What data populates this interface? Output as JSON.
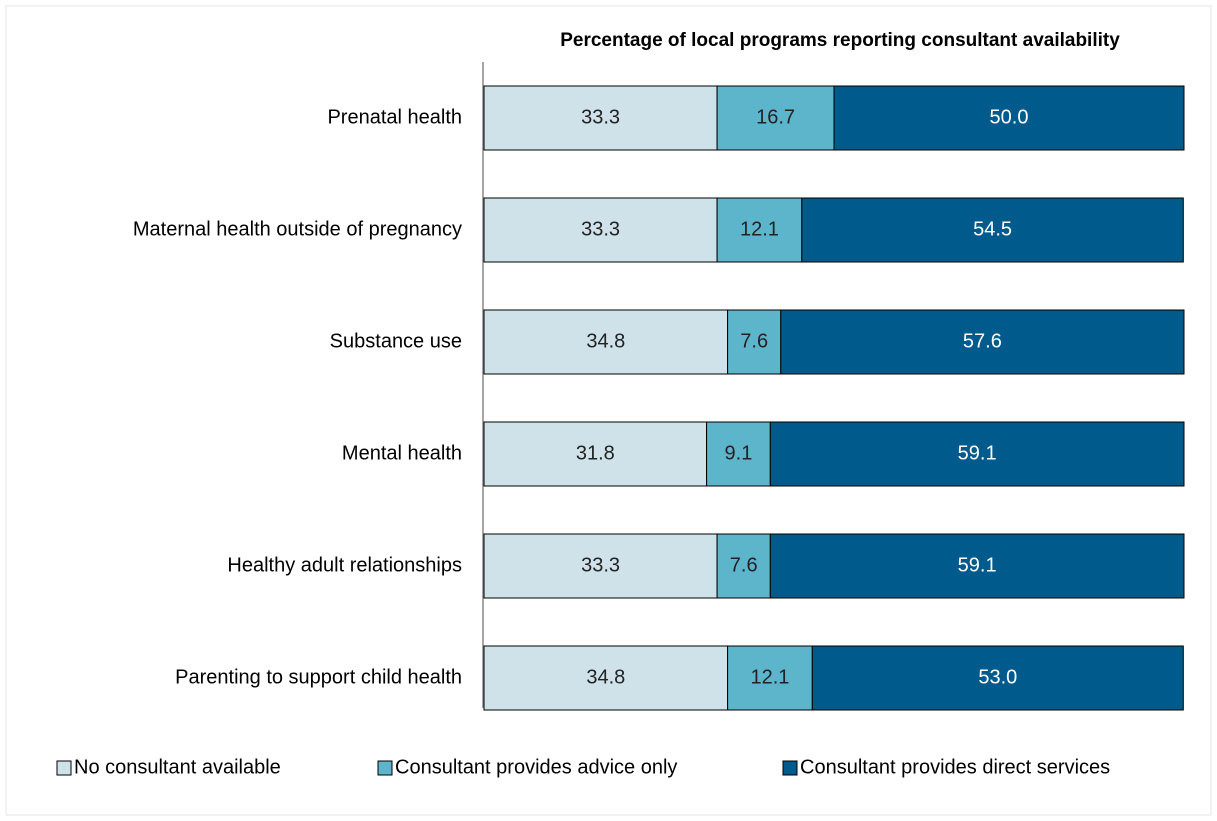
{
  "chart_data": {
    "type": "stacked_barh",
    "title": "Percentage of local programs reporting consultant availability",
    "categories": [
      "Prenatal health",
      "Maternal health outside of pregnancy",
      "Substance use",
      "Mental health",
      "Healthy adult relationships",
      "Parenting to support child health"
    ],
    "series": [
      {
        "name": "No consultant available",
        "color": "#cfe2ea",
        "values": [
          33.3,
          33.3,
          34.8,
          31.8,
          33.3,
          34.8
        ],
        "value_labels": [
          "33.3",
          "33.3",
          "34.8",
          "31.8",
          "33.3",
          "34.8"
        ]
      },
      {
        "name": "Consultant provides advice only",
        "color": "#5db5cc",
        "values": [
          16.7,
          12.1,
          7.6,
          9.1,
          7.6,
          12.1
        ],
        "value_labels": [
          "16.7",
          "12.1",
          "7.6",
          "9.1",
          "7.6",
          "12.1"
        ]
      },
      {
        "name": "Consultant provides direct services",
        "color": "#005a8c",
        "values": [
          50.0,
          54.5,
          57.6,
          59.1,
          59.1,
          53.0
        ],
        "value_labels": [
          "50.0",
          "54.5",
          "57.6",
          "59.1",
          "59.1",
          "53.0"
        ]
      }
    ],
    "xlim": [
      0,
      100
    ],
    "legend": "bottom"
  }
}
